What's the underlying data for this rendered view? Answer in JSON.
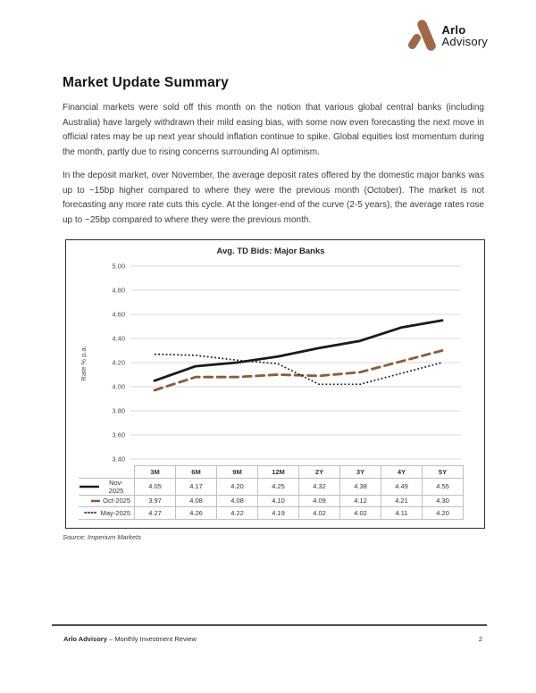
{
  "logo": {
    "name": "Arlo",
    "subname": "Advisory",
    "mark_color": "#9d6946"
  },
  "main": {
    "heading": "Market Update Summary",
    "paragraphs": [
      "Financial markets were sold off this month on the notion that various global central banks (including Australia) have largely withdrawn their mild easing bias, with some now even forecasting the next move in official rates may be up next year should inflation continue to spike. Global equities lost momentum during the month, partly due to rising concerns surrounding AI optimism.",
      "In the deposit market, over November, the average deposit rates offered by the domestic major banks was up to ~15bp higher compared to where they were the previous month (October). The market is not forecasting any more rate cuts this cycle. At the longer-end of the curve (2-5 years), the average rates rose up to ~25bp compared to where they were the previous month."
    ],
    "source_note": "Source: Imperium Markets"
  },
  "chart_data": {
    "type": "line",
    "title": "Avg. TD Bids: Major Banks",
    "xlabel": "",
    "ylabel": "Rate % p.a.",
    "categories": [
      "3M",
      "6M",
      "9M",
      "12M",
      "2Y",
      "3Y",
      "4Y",
      "5Y"
    ],
    "series": [
      {
        "name": "Nov-2025",
        "style": "solid",
        "color": "#1a1a1a",
        "values": [
          4.05,
          4.17,
          4.2,
          4.25,
          4.32,
          4.38,
          4.49,
          4.55
        ]
      },
      {
        "name": "Oct-2025",
        "style": "dashed",
        "color": "#8e5c38",
        "values": [
          3.97,
          4.08,
          4.08,
          4.1,
          4.09,
          4.12,
          4.21,
          4.3
        ]
      },
      {
        "name": "May-2025",
        "style": "dotted",
        "color": "#1a1a1a",
        "values": [
          4.27,
          4.26,
          4.22,
          4.19,
          4.02,
          4.02,
          4.11,
          4.2
        ]
      }
    ],
    "ylim": [
      3.4,
      5.0
    ],
    "ytick_step": 0.2,
    "grid": true,
    "gridline_color": "#d9d9d9",
    "axis_text_color": "#4d4d4d",
    "legend_position": "table-left"
  },
  "footer": {
    "brand": "Arlo Advisory",
    "rest": "– Monthly Investment Review",
    "page_number": "2"
  }
}
